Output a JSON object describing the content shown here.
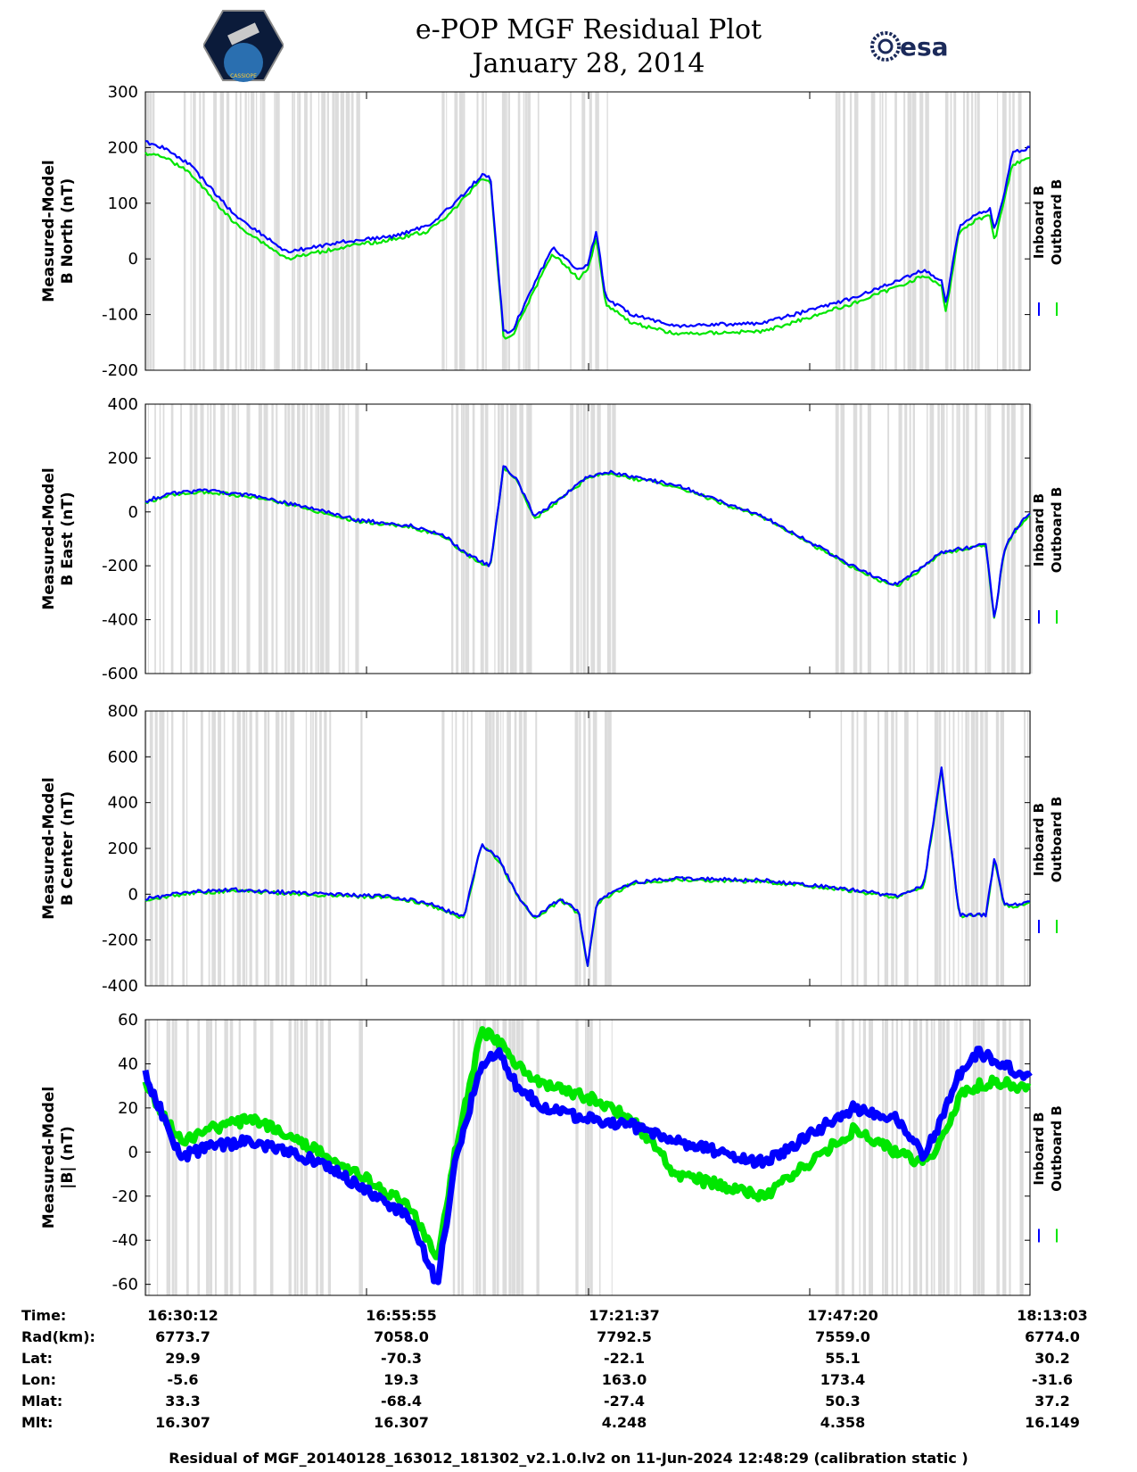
{
  "header": {
    "title_line1": "e-POP MGF Residual Plot",
    "title_line2": "January 28, 2014",
    "logo_left_text": "CASSIOPE",
    "logo_right_text": "esa"
  },
  "colors": {
    "inboard": "#0000ff",
    "outboard": "#00e600",
    "gap_fill": "#dcdcdc",
    "axis": "#000000"
  },
  "chart_data": [
    {
      "type": "line",
      "ylabel": [
        "Measured-Model",
        "B North (nT)"
      ],
      "ylim": [
        -200,
        300
      ],
      "yticks": [
        300,
        200,
        100,
        0,
        -100,
        -200
      ],
      "legend": [
        "Inboard B",
        "Outboard B"
      ],
      "series": [
        {
          "name": "Inboard B",
          "x": [
            0,
            0.02,
            0.05,
            0.1,
            0.16,
            0.22,
            0.28,
            0.32,
            0.35,
            0.38,
            0.39,
            0.405,
            0.415,
            0.42,
            0.46,
            0.49,
            0.5,
            0.51,
            0.52,
            0.55,
            0.6,
            0.7,
            0.8,
            0.85,
            0.88,
            0.9,
            0.905,
            0.92,
            0.94,
            0.955,
            0.96,
            0.97,
            0.98,
            1.0
          ],
          "values": [
            210,
            200,
            170,
            80,
            12,
            30,
            40,
            60,
            100,
            150,
            145,
            -130,
            -130,
            -110,
            20,
            -20,
            -10,
            50,
            -70,
            -100,
            -120,
            -115,
            -70,
            -40,
            -20,
            -40,
            -80,
            60,
            80,
            90,
            50,
            110,
            190,
            200
          ]
        },
        {
          "name": "Outboard B",
          "x": [
            0,
            0.02,
            0.05,
            0.1,
            0.16,
            0.22,
            0.28,
            0.32,
            0.35,
            0.38,
            0.39,
            0.405,
            0.415,
            0.42,
            0.46,
            0.49,
            0.5,
            0.51,
            0.52,
            0.55,
            0.6,
            0.7,
            0.8,
            0.85,
            0.88,
            0.9,
            0.905,
            0.92,
            0.94,
            0.955,
            0.96,
            0.97,
            0.98,
            1.0
          ],
          "values": [
            190,
            185,
            155,
            65,
            0,
            20,
            35,
            50,
            90,
            145,
            140,
            -140,
            -140,
            -120,
            10,
            -35,
            -20,
            40,
            -80,
            -115,
            -135,
            -130,
            -80,
            -50,
            -30,
            -50,
            -95,
            50,
            70,
            80,
            30,
            100,
            170,
            180
          ]
        }
      ]
    },
    {
      "type": "line",
      "ylabel": [
        "Measured-Model",
        "B East (nT)"
      ],
      "ylim": [
        -600,
        400
      ],
      "yticks": [
        400,
        200,
        0,
        -200,
        -400,
        -600
      ],
      "legend": [
        "Inboard B",
        "Outboard B"
      ],
      "series": [
        {
          "name": "Inboard B",
          "x": [
            0,
            0.03,
            0.07,
            0.12,
            0.18,
            0.24,
            0.3,
            0.34,
            0.36,
            0.39,
            0.405,
            0.42,
            0.44,
            0.5,
            0.52,
            0.55,
            0.6,
            0.7,
            0.8,
            0.83,
            0.85,
            0.88,
            0.9,
            0.95,
            0.96,
            0.97,
            0.98,
            1.0
          ],
          "values": [
            40,
            70,
            80,
            60,
            20,
            -30,
            -50,
            -90,
            -150,
            -200,
            170,
            120,
            -20,
            130,
            150,
            130,
            100,
            -20,
            -200,
            -250,
            -270,
            -200,
            -150,
            -120,
            -400,
            -150,
            -80,
            0
          ]
        },
        {
          "name": "Outboard B",
          "x": [
            0,
            0.03,
            0.07,
            0.12,
            0.18,
            0.24,
            0.3,
            0.34,
            0.36,
            0.39,
            0.405,
            0.42,
            0.44,
            0.5,
            0.52,
            0.55,
            0.6,
            0.7,
            0.8,
            0.83,
            0.85,
            0.88,
            0.9,
            0.95,
            0.96,
            0.97,
            0.98,
            1.0
          ],
          "values": [
            35,
            65,
            75,
            55,
            15,
            -35,
            -55,
            -95,
            -155,
            -205,
            165,
            115,
            -25,
            125,
            145,
            125,
            95,
            -25,
            -205,
            -255,
            -275,
            -205,
            -155,
            -125,
            -405,
            -155,
            -85,
            -5
          ]
        }
      ]
    },
    {
      "type": "line",
      "ylabel": [
        "Measured-Model",
        "B Center (nT)"
      ],
      "ylim": [
        -400,
        800
      ],
      "yticks": [
        800,
        600,
        400,
        200,
        0,
        -200,
        -400
      ],
      "legend": [
        "Inboard B",
        "Outboard B"
      ],
      "series": [
        {
          "name": "Inboard B",
          "x": [
            0,
            0.05,
            0.1,
            0.2,
            0.28,
            0.32,
            0.36,
            0.38,
            0.4,
            0.42,
            0.44,
            0.47,
            0.49,
            0.5,
            0.51,
            0.52,
            0.55,
            0.6,
            0.7,
            0.8,
            0.85,
            0.88,
            0.9,
            0.92,
            0.935,
            0.95,
            0.96,
            0.97,
            0.98,
            1.0
          ],
          "values": [
            -20,
            10,
            20,
            0,
            -10,
            -40,
            -100,
            220,
            150,
            0,
            -100,
            -20,
            -80,
            -310,
            -40,
            -10,
            50,
            70,
            60,
            20,
            -10,
            40,
            550,
            -90,
            -90,
            -90,
            160,
            -40,
            -50,
            -30
          ]
        },
        {
          "name": "Outboard B",
          "x": [
            0,
            0.05,
            0.1,
            0.2,
            0.28,
            0.32,
            0.36,
            0.38,
            0.4,
            0.42,
            0.44,
            0.47,
            0.49,
            0.5,
            0.51,
            0.52,
            0.55,
            0.6,
            0.7,
            0.8,
            0.85,
            0.88,
            0.9,
            0.92,
            0.935,
            0.95,
            0.96,
            0.97,
            0.98,
            1.0
          ],
          "values": [
            -25,
            5,
            15,
            -5,
            -15,
            -45,
            -105,
            215,
            145,
            -5,
            -105,
            -25,
            -85,
            -315,
            -45,
            -15,
            45,
            65,
            55,
            15,
            -15,
            35,
            545,
            -95,
            -95,
            -95,
            155,
            -45,
            -55,
            -35
          ]
        }
      ]
    },
    {
      "type": "line",
      "ylabel": [
        "Measured-Model",
        "|B| (nT)"
      ],
      "ylim": [
        -65,
        60
      ],
      "yticks": [
        60,
        40,
        20,
        0,
        -20,
        -40,
        -60
      ],
      "legend": [
        "Inboard B",
        "Outboard B"
      ],
      "series": [
        {
          "name": "Inboard B",
          "x": [
            0,
            0.04,
            0.07,
            0.12,
            0.2,
            0.26,
            0.3,
            0.33,
            0.35,
            0.38,
            0.4,
            0.42,
            0.45,
            0.5,
            0.55,
            0.6,
            0.7,
            0.8,
            0.85,
            0.88,
            0.9,
            0.92,
            0.94,
            0.96,
            1.0
          ],
          "values": [
            35,
            -2,
            2,
            5,
            -5,
            -20,
            -30,
            -60,
            -5,
            40,
            45,
            30,
            20,
            15,
            12,
            5,
            -5,
            20,
            15,
            -2,
            15,
            35,
            45,
            42,
            33
          ]
        },
        {
          "name": "Outboard B",
          "x": [
            0,
            0.04,
            0.07,
            0.12,
            0.2,
            0.26,
            0.3,
            0.33,
            0.35,
            0.38,
            0.4,
            0.42,
            0.45,
            0.5,
            0.55,
            0.6,
            0.7,
            0.8,
            0.85,
            0.88,
            0.9,
            0.92,
            0.94,
            0.96,
            1.0
          ],
          "values": [
            30,
            5,
            10,
            15,
            0,
            -15,
            -25,
            -50,
            0,
            55,
            50,
            40,
            30,
            25,
            15,
            -10,
            -20,
            10,
            0,
            -5,
            5,
            25,
            30,
            32,
            28
          ]
        }
      ]
    }
  ],
  "footer": {
    "rows": [
      {
        "label": "Time:",
        "values": [
          "16:30:12",
          "16:55:55",
          "17:21:37",
          "17:47:20",
          "18:13:03"
        ]
      },
      {
        "label": "Rad(km):",
        "values": [
          "6773.7",
          "7058.0",
          "7792.5",
          "7559.0",
          "6774.0"
        ]
      },
      {
        "label": "Lat:",
        "values": [
          "29.9",
          "-70.3",
          "-22.1",
          "55.1",
          "30.2"
        ]
      },
      {
        "label": "Lon:",
        "values": [
          "-5.6",
          "19.3",
          "163.0",
          "173.4",
          "-31.6"
        ]
      },
      {
        "label": "Mlat:",
        "values": [
          "33.3",
          "-68.4",
          "-27.4",
          "50.3",
          "37.2"
        ]
      },
      {
        "label": "Mlt:",
        "values": [
          "16.307",
          "16.307",
          "4.248",
          "4.358",
          "16.149"
        ]
      }
    ],
    "note": "Residual of MGF_20140128_163012_181302_v2.1.0.lv2 on 11-Jun-2024 12:48:29 (calibration static )"
  }
}
